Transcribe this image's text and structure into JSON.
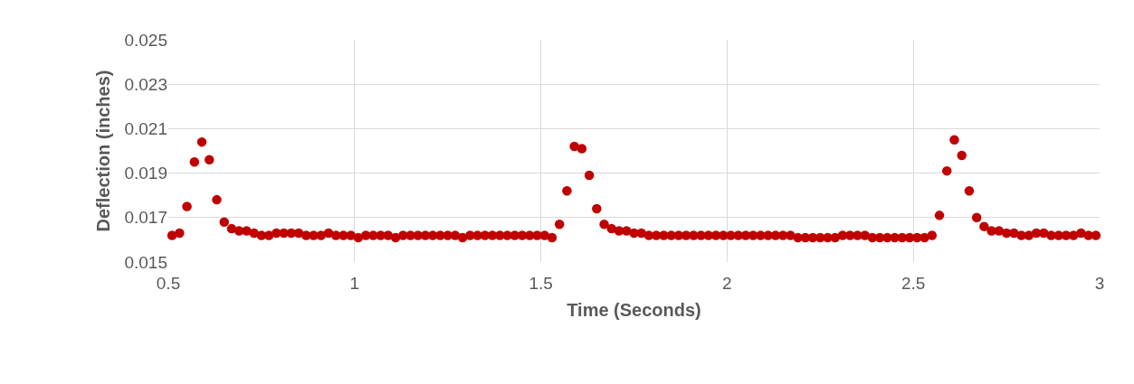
{
  "chart_data": {
    "type": "scatter",
    "xlabel": "Time (Seconds)",
    "ylabel": "Deflection (inches)",
    "xlim": [
      0.5,
      3
    ],
    "xticks": [
      0.5,
      1,
      1.5,
      2,
      2.5,
      3
    ],
    "ylim": [
      0.015,
      0.025
    ],
    "yticks": [
      0.015,
      0.017,
      0.019,
      0.021,
      0.023,
      0.025
    ],
    "grid": true,
    "marker": "circle",
    "x": [
      0.51,
      0.53,
      0.55,
      0.57,
      0.59,
      0.61,
      0.63,
      0.65,
      0.67,
      0.69,
      0.71,
      0.73,
      0.75,
      0.77,
      0.79,
      0.81,
      0.83,
      0.85,
      0.87,
      0.89,
      0.91,
      0.93,
      0.95,
      0.97,
      0.99,
      1.01,
      1.03,
      1.05,
      1.07,
      1.09,
      1.11,
      1.13,
      1.15,
      1.17,
      1.19,
      1.21,
      1.23,
      1.25,
      1.27,
      1.29,
      1.31,
      1.33,
      1.35,
      1.37,
      1.39,
      1.41,
      1.43,
      1.45,
      1.47,
      1.49,
      1.51,
      1.53,
      1.55,
      1.57,
      1.59,
      1.61,
      1.63,
      1.65,
      1.67,
      1.69,
      1.71,
      1.73,
      1.75,
      1.77,
      1.79,
      1.81,
      1.83,
      1.85,
      1.87,
      1.89,
      1.91,
      1.93,
      1.95,
      1.97,
      1.99,
      2.01,
      2.03,
      2.05,
      2.07,
      2.09,
      2.11,
      2.13,
      2.15,
      2.17,
      2.19,
      2.21,
      2.23,
      2.25,
      2.27,
      2.29,
      2.31,
      2.33,
      2.35,
      2.37,
      2.39,
      2.41,
      2.43,
      2.45,
      2.47,
      2.49,
      2.51,
      2.53,
      2.55,
      2.57,
      2.59,
      2.61,
      2.63,
      2.65,
      2.67,
      2.69,
      2.71,
      2.73,
      2.75,
      2.77,
      2.79,
      2.81,
      2.83,
      2.85,
      2.87,
      2.89,
      2.91,
      2.93,
      2.95,
      2.97,
      2.99
    ],
    "series": [
      {
        "color": "#c00000",
        "values": [
          0.0162,
          0.0163,
          0.0175,
          0.0195,
          0.0204,
          0.0196,
          0.0178,
          0.0168,
          0.0165,
          0.0164,
          0.0164,
          0.0163,
          0.0162,
          0.0162,
          0.0163,
          0.0163,
          0.0163,
          0.0163,
          0.0162,
          0.0162,
          0.0162,
          0.0163,
          0.0162,
          0.0162,
          0.0162,
          0.0161,
          0.0162,
          0.0162,
          0.0162,
          0.0162,
          0.0161,
          0.0162,
          0.0162,
          0.0162,
          0.0162,
          0.0162,
          0.0162,
          0.0162,
          0.0162,
          0.0161,
          0.0162,
          0.0162,
          0.0162,
          0.0162,
          0.0162,
          0.0162,
          0.0162,
          0.0162,
          0.0162,
          0.0162,
          0.0162,
          0.0161,
          0.0167,
          0.0182,
          0.0202,
          0.0201,
          0.0189,
          0.0174,
          0.0167,
          0.0165,
          0.0164,
          0.0164,
          0.0163,
          0.0163,
          0.0162,
          0.0162,
          0.0162,
          0.0162,
          0.0162,
          0.0162,
          0.0162,
          0.0162,
          0.0162,
          0.0162,
          0.0162,
          0.0162,
          0.0162,
          0.0162,
          0.0162,
          0.0162,
          0.0162,
          0.0162,
          0.0162,
          0.0162,
          0.0161,
          0.0161,
          0.0161,
          0.0161,
          0.0161,
          0.0161,
          0.0162,
          0.0162,
          0.0162,
          0.0162,
          0.0161,
          0.0161,
          0.0161,
          0.0161,
          0.0161,
          0.0161,
          0.0161,
          0.0161,
          0.0162,
          0.0171,
          0.0191,
          0.0205,
          0.0198,
          0.0182,
          0.017,
          0.0166,
          0.0164,
          0.0164,
          0.0163,
          0.0163,
          0.0162,
          0.0162,
          0.0163,
          0.0163,
          0.0162,
          0.0162,
          0.0162,
          0.0162,
          0.0163,
          0.0162,
          0.0162
        ]
      }
    ]
  }
}
